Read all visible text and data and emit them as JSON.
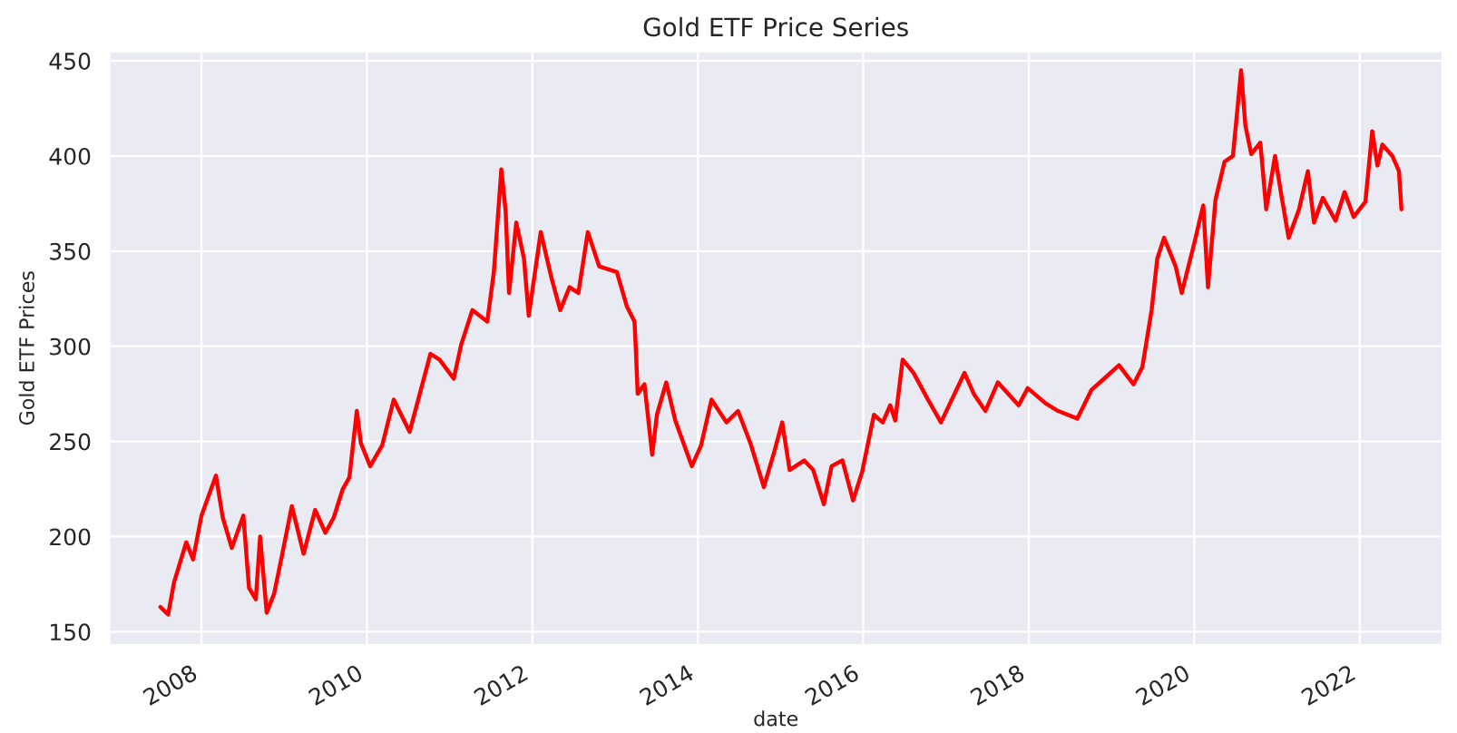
{
  "chart_data": {
    "type": "line",
    "title": "Gold ETF Price Series",
    "xlabel": "date",
    "ylabel": "Gold ETF Prices",
    "x": [
      "2007-07-04",
      "2007-08-07",
      "2007-09-02",
      "2007-10-26",
      "2007-11-25",
      "2008-01-01",
      "2008-03-05",
      "2008-04-04",
      "2008-05-14",
      "2008-07-04",
      "2008-07-29",
      "2008-08-28",
      "2008-09-16",
      "2008-10-15",
      "2008-11-17",
      "2008-12-23",
      "2009-02-03",
      "2009-03-27",
      "2009-05-17",
      "2009-07-01",
      "2009-08-07",
      "2009-09-16",
      "2009-10-15",
      "2009-11-17",
      "2009-12-05",
      "2010-01-15",
      "2010-03-09",
      "2010-04-29",
      "2010-07-08",
      "2010-10-08",
      "2010-11-17",
      "2011-01-19",
      "2011-02-21",
      "2011-04-11",
      "2011-06-16",
      "2011-07-15",
      "2011-08-17",
      "2011-09-05",
      "2011-09-20",
      "2011-10-22",
      "2011-11-25",
      "2011-12-16",
      "2012-02-07",
      "2012-03-23",
      "2012-05-03",
      "2012-06-13",
      "2012-07-22",
      "2012-09-02",
      "2012-10-22",
      "2013-01-08",
      "2013-02-21",
      "2013-03-27",
      "2013-04-02",
      "2013-04-10",
      "2013-05-10",
      "2013-06-13",
      "2013-07-04",
      "2013-08-14",
      "2013-09-23",
      "2013-12-05",
      "2014-01-15",
      "2014-03-02",
      "2014-05-07",
      "2014-06-27",
      "2014-08-21",
      "2014-10-19",
      "2014-12-05",
      "2015-01-08",
      "2015-02-10",
      "2015-04-15",
      "2015-05-25",
      "2015-07-11",
      "2015-08-14",
      "2015-10-01",
      "2015-11-17",
      "2015-12-27",
      "2016-02-17",
      "2016-03-27",
      "2016-04-29",
      "2016-05-21",
      "2016-06-23",
      "2016-08-10",
      "2016-10-08",
      "2016-12-09",
      "2017-03-23",
      "2017-05-03",
      "2017-06-23",
      "2017-08-17",
      "2017-11-17",
      "2017-12-27",
      "2018-03-16",
      "2018-05-10",
      "2018-08-03",
      "2018-10-04",
      "2018-12-09",
      "2019-02-03",
      "2019-04-08",
      "2019-05-17",
      "2019-06-27",
      "2019-07-22",
      "2019-08-21",
      "2019-10-11",
      "2019-11-07",
      "2020-01-01",
      "2020-02-10",
      "2020-03-02",
      "2020-04-04",
      "2020-05-14",
      "2020-06-20",
      "2020-07-11",
      "2020-07-26",
      "2020-08-14",
      "2020-09-09",
      "2020-10-19",
      "2020-11-14",
      "2020-12-23",
      "2021-01-19",
      "2021-02-21",
      "2021-04-08",
      "2021-05-17",
      "2021-06-13",
      "2021-07-22",
      "2021-09-16",
      "2021-10-26",
      "2021-12-05",
      "2022-01-26",
      "2022-02-25",
      "2022-03-20",
      "2022-04-11",
      "2022-05-25",
      "2022-06-23",
      "2022-07-04"
    ],
    "series": [
      {
        "color": "#ff0000",
        "values": [
          163,
          159,
          176,
          197,
          188,
          211,
          232,
          210,
          194,
          211,
          173,
          167,
          200,
          160,
          170,
          191,
          216,
          191,
          214,
          202,
          210,
          225,
          231,
          266,
          249,
          237,
          248,
          272,
          255,
          296,
          293,
          283,
          301,
          319,
          313,
          339,
          393,
          371,
          328,
          365,
          346,
          316,
          360,
          337,
          319,
          331,
          328,
          360,
          342,
          339,
          321,
          313,
          298,
          275,
          280,
          243,
          264,
          281,
          261,
          237,
          248,
          272,
          260,
          266,
          249,
          226,
          245,
          260,
          235,
          240,
          235,
          217,
          237,
          240,
          219,
          234,
          264,
          260,
          269,
          261,
          293,
          286,
          273,
          260,
          286,
          275,
          266,
          281,
          269,
          278,
          270,
          266,
          262,
          277,
          284,
          290,
          280,
          289,
          319,
          346,
          357,
          342,
          328,
          354,
          374,
          331,
          377,
          397,
          400,
          426,
          445,
          416,
          401,
          407,
          372,
          400,
          380,
          357,
          372,
          392,
          365,
          378,
          366,
          381,
          368,
          376,
          413,
          395,
          406,
          400,
          392,
          372
        ]
      }
    ],
    "xlim": [
      "2006-11-20",
      "2023-01-01"
    ],
    "xticks": [
      {
        "value": "2008",
        "label": "2008"
      },
      {
        "value": "2010",
        "label": "2010"
      },
      {
        "value": "2012",
        "label": "2012"
      },
      {
        "value": "2014",
        "label": "2014"
      },
      {
        "value": "2016",
        "label": "2016"
      },
      {
        "value": "2018",
        "label": "2018"
      },
      {
        "value": "2020",
        "label": "2020"
      },
      {
        "value": "2022",
        "label": "2022"
      }
    ],
    "ylim": [
      143,
      455
    ],
    "yticks": [
      150,
      200,
      250,
      300,
      350,
      400,
      450
    ],
    "grid": true
  }
}
